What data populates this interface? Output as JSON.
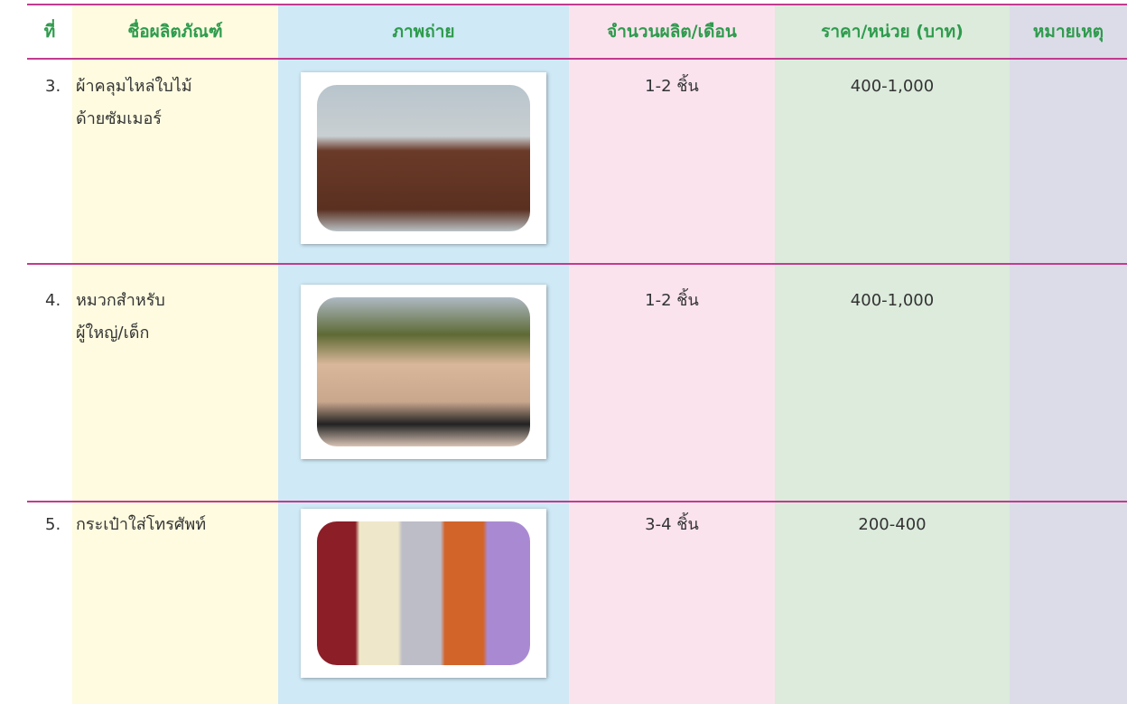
{
  "header": {
    "columns": [
      "ที่",
      "ชื่อผลิตภัณฑ์",
      "ภาพถ่าย",
      "จำนวนผลิต/เดือน",
      "ราคา/หน่วย (บาท)",
      "หมายเหตุ"
    ]
  },
  "rows": [
    {
      "number": "3.",
      "name": [
        "ผ้าคลุมไหล่ใบไม้",
        "ด้ายซัมเมอร์"
      ],
      "quantity": "1-2 ชิ้น",
      "price": "400-1,000"
    },
    {
      "number": "4.",
      "name": [
        "หมวกสำหรับ",
        "ผู้ใหญ่/เด็ก"
      ],
      "quantity": "1-2 ชิ้น",
      "price": "400-1,000"
    },
    {
      "number": "5.",
      "name": [
        "กระเป๋าใส่โทรศัพท์"
      ],
      "quantity": "3-4 ชิ้น",
      "price": "200-400"
    }
  ]
}
